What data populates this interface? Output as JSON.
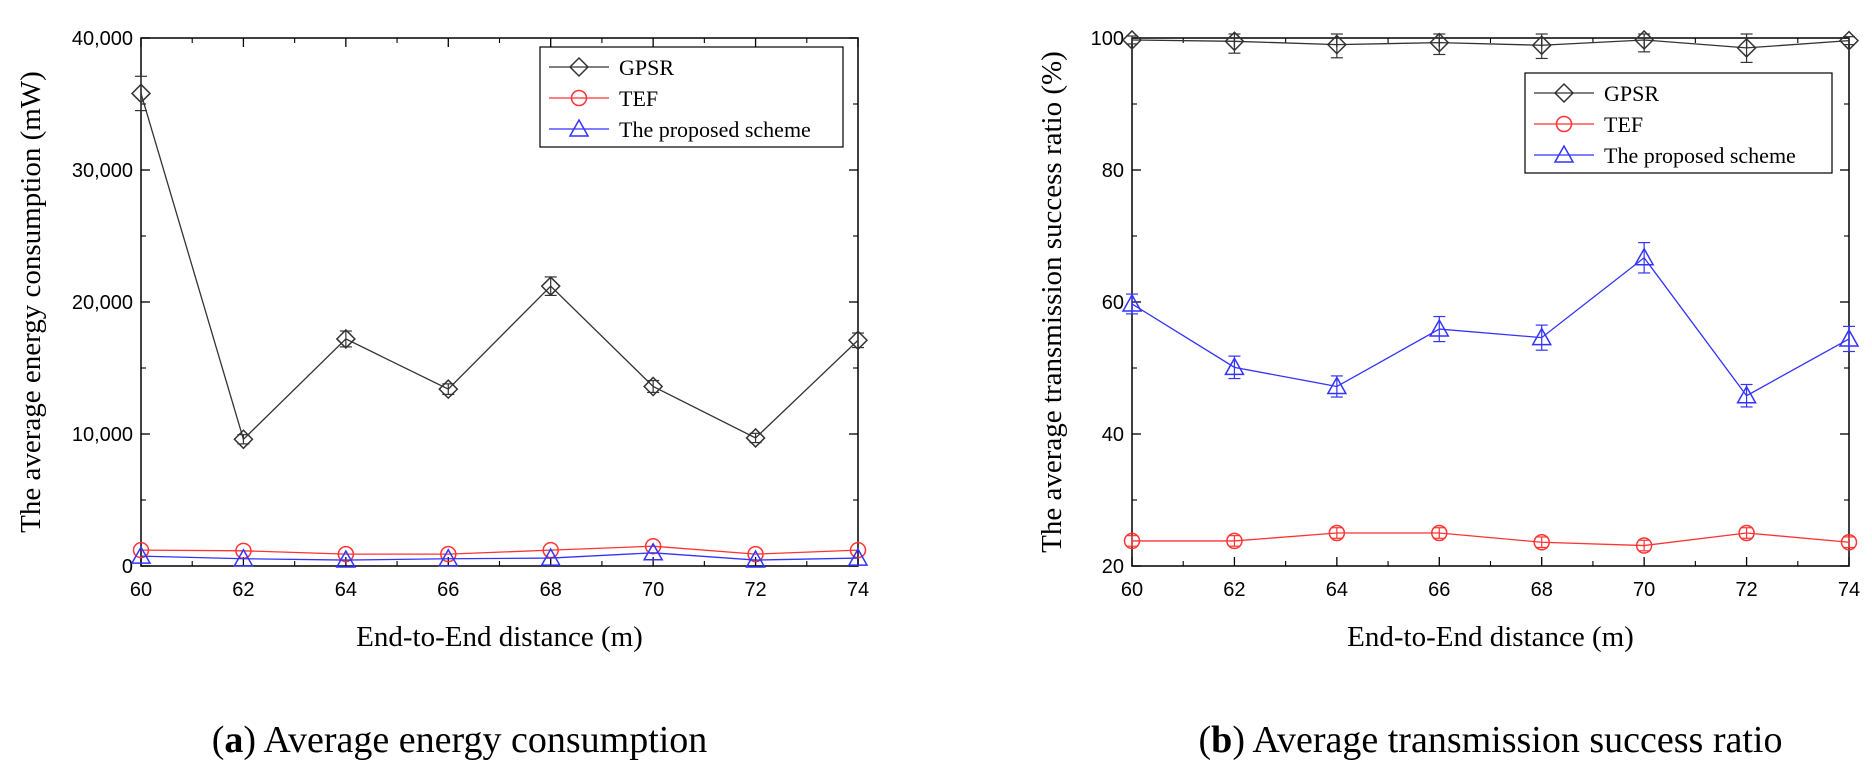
{
  "colors": {
    "gpsr": "#333333",
    "tef": "#ff3333",
    "proposed": "#3333ff",
    "axis": "#000000"
  },
  "chart_data": [
    {
      "type": "line",
      "panel": "a",
      "caption_letter": "a",
      "caption_text": "Average energy consumption",
      "xlabel": "End-to-End distance (m)",
      "ylabel": "The average energy consumption (mW)",
      "x": [
        60,
        62,
        64,
        66,
        68,
        70,
        72,
        74
      ],
      "xlim": [
        60,
        74
      ],
      "ylim": [
        0,
        40000
      ],
      "xticks": [
        60,
        62,
        64,
        66,
        68,
        70,
        72,
        74
      ],
      "xtick_labels": [
        "60",
        "62",
        "64",
        "66",
        "68",
        "70",
        "72",
        "74"
      ],
      "yticks": [
        0,
        10000,
        20000,
        30000,
        40000
      ],
      "ytick_labels": [
        "0",
        "10,000",
        "20,000",
        "30,000",
        "40,000"
      ],
      "legend_position": "top-right",
      "series": [
        {
          "name": "GPSR",
          "marker": "diamond",
          "color": "#333333",
          "values": [
            35800,
            9600,
            17200,
            13400,
            21200,
            13600,
            9700,
            17100
          ],
          "errors": [
            1300,
            350,
            600,
            400,
            700,
            450,
            350,
            550
          ]
        },
        {
          "name": "TEF",
          "marker": "circle",
          "color": "#ff3333",
          "values": [
            1200,
            1150,
            900,
            900,
            1200,
            1500,
            900,
            1200
          ],
          "errors": [
            0,
            0,
            0,
            0,
            0,
            0,
            0,
            0
          ]
        },
        {
          "name": "The proposed scheme",
          "marker": "triangle",
          "color": "#3333ff",
          "values": [
            750,
            550,
            450,
            550,
            600,
            1000,
            450,
            600
          ],
          "errors": [
            0,
            0,
            0,
            0,
            0,
            0,
            0,
            0
          ]
        }
      ]
    },
    {
      "type": "line",
      "panel": "b",
      "caption_letter": "b",
      "caption_text": "Average transmission success ratio",
      "xlabel": "End-to-End distance (m)",
      "ylabel": "The average transmission success ratio (%)",
      "x": [
        60,
        62,
        64,
        66,
        68,
        70,
        72,
        74
      ],
      "xlim": [
        60,
        74
      ],
      "ylim": [
        20,
        100
      ],
      "xticks": [
        60,
        62,
        64,
        66,
        68,
        70,
        72,
        74
      ],
      "xtick_labels": [
        "60",
        "62",
        "64",
        "66",
        "68",
        "70",
        "72",
        "74"
      ],
      "yticks": [
        20,
        40,
        60,
        80,
        100
      ],
      "ytick_labels": [
        "20",
        "40",
        "60",
        "80",
        "100"
      ],
      "legend_position": "top-right",
      "series": [
        {
          "name": "GPSR",
          "marker": "diamond",
          "color": "#333333",
          "values": [
            99.7,
            99.5,
            99.0,
            99.3,
            98.9,
            99.7,
            98.5,
            99.6
          ],
          "errors": [
            0.6,
            1.8,
            2.0,
            1.8,
            2.0,
            1.8,
            2.2,
            0.6
          ]
        },
        {
          "name": "TEF",
          "marker": "circle",
          "color": "#ff3333",
          "values": [
            23.8,
            23.8,
            25.0,
            25.0,
            23.6,
            23.1,
            25.0,
            23.6
          ],
          "errors": [
            0.8,
            0.8,
            0.8,
            0.8,
            0.8,
            0.8,
            0.8,
            0.8
          ]
        },
        {
          "name": "The proposed scheme",
          "marker": "triangle",
          "color": "#3333ff",
          "values": [
            59.7,
            50.1,
            47.2,
            55.9,
            54.6,
            66.7,
            45.8,
            54.4
          ],
          "errors": [
            1.5,
            1.7,
            1.6,
            1.9,
            1.9,
            2.3,
            1.7,
            1.9
          ]
        }
      ]
    }
  ]
}
